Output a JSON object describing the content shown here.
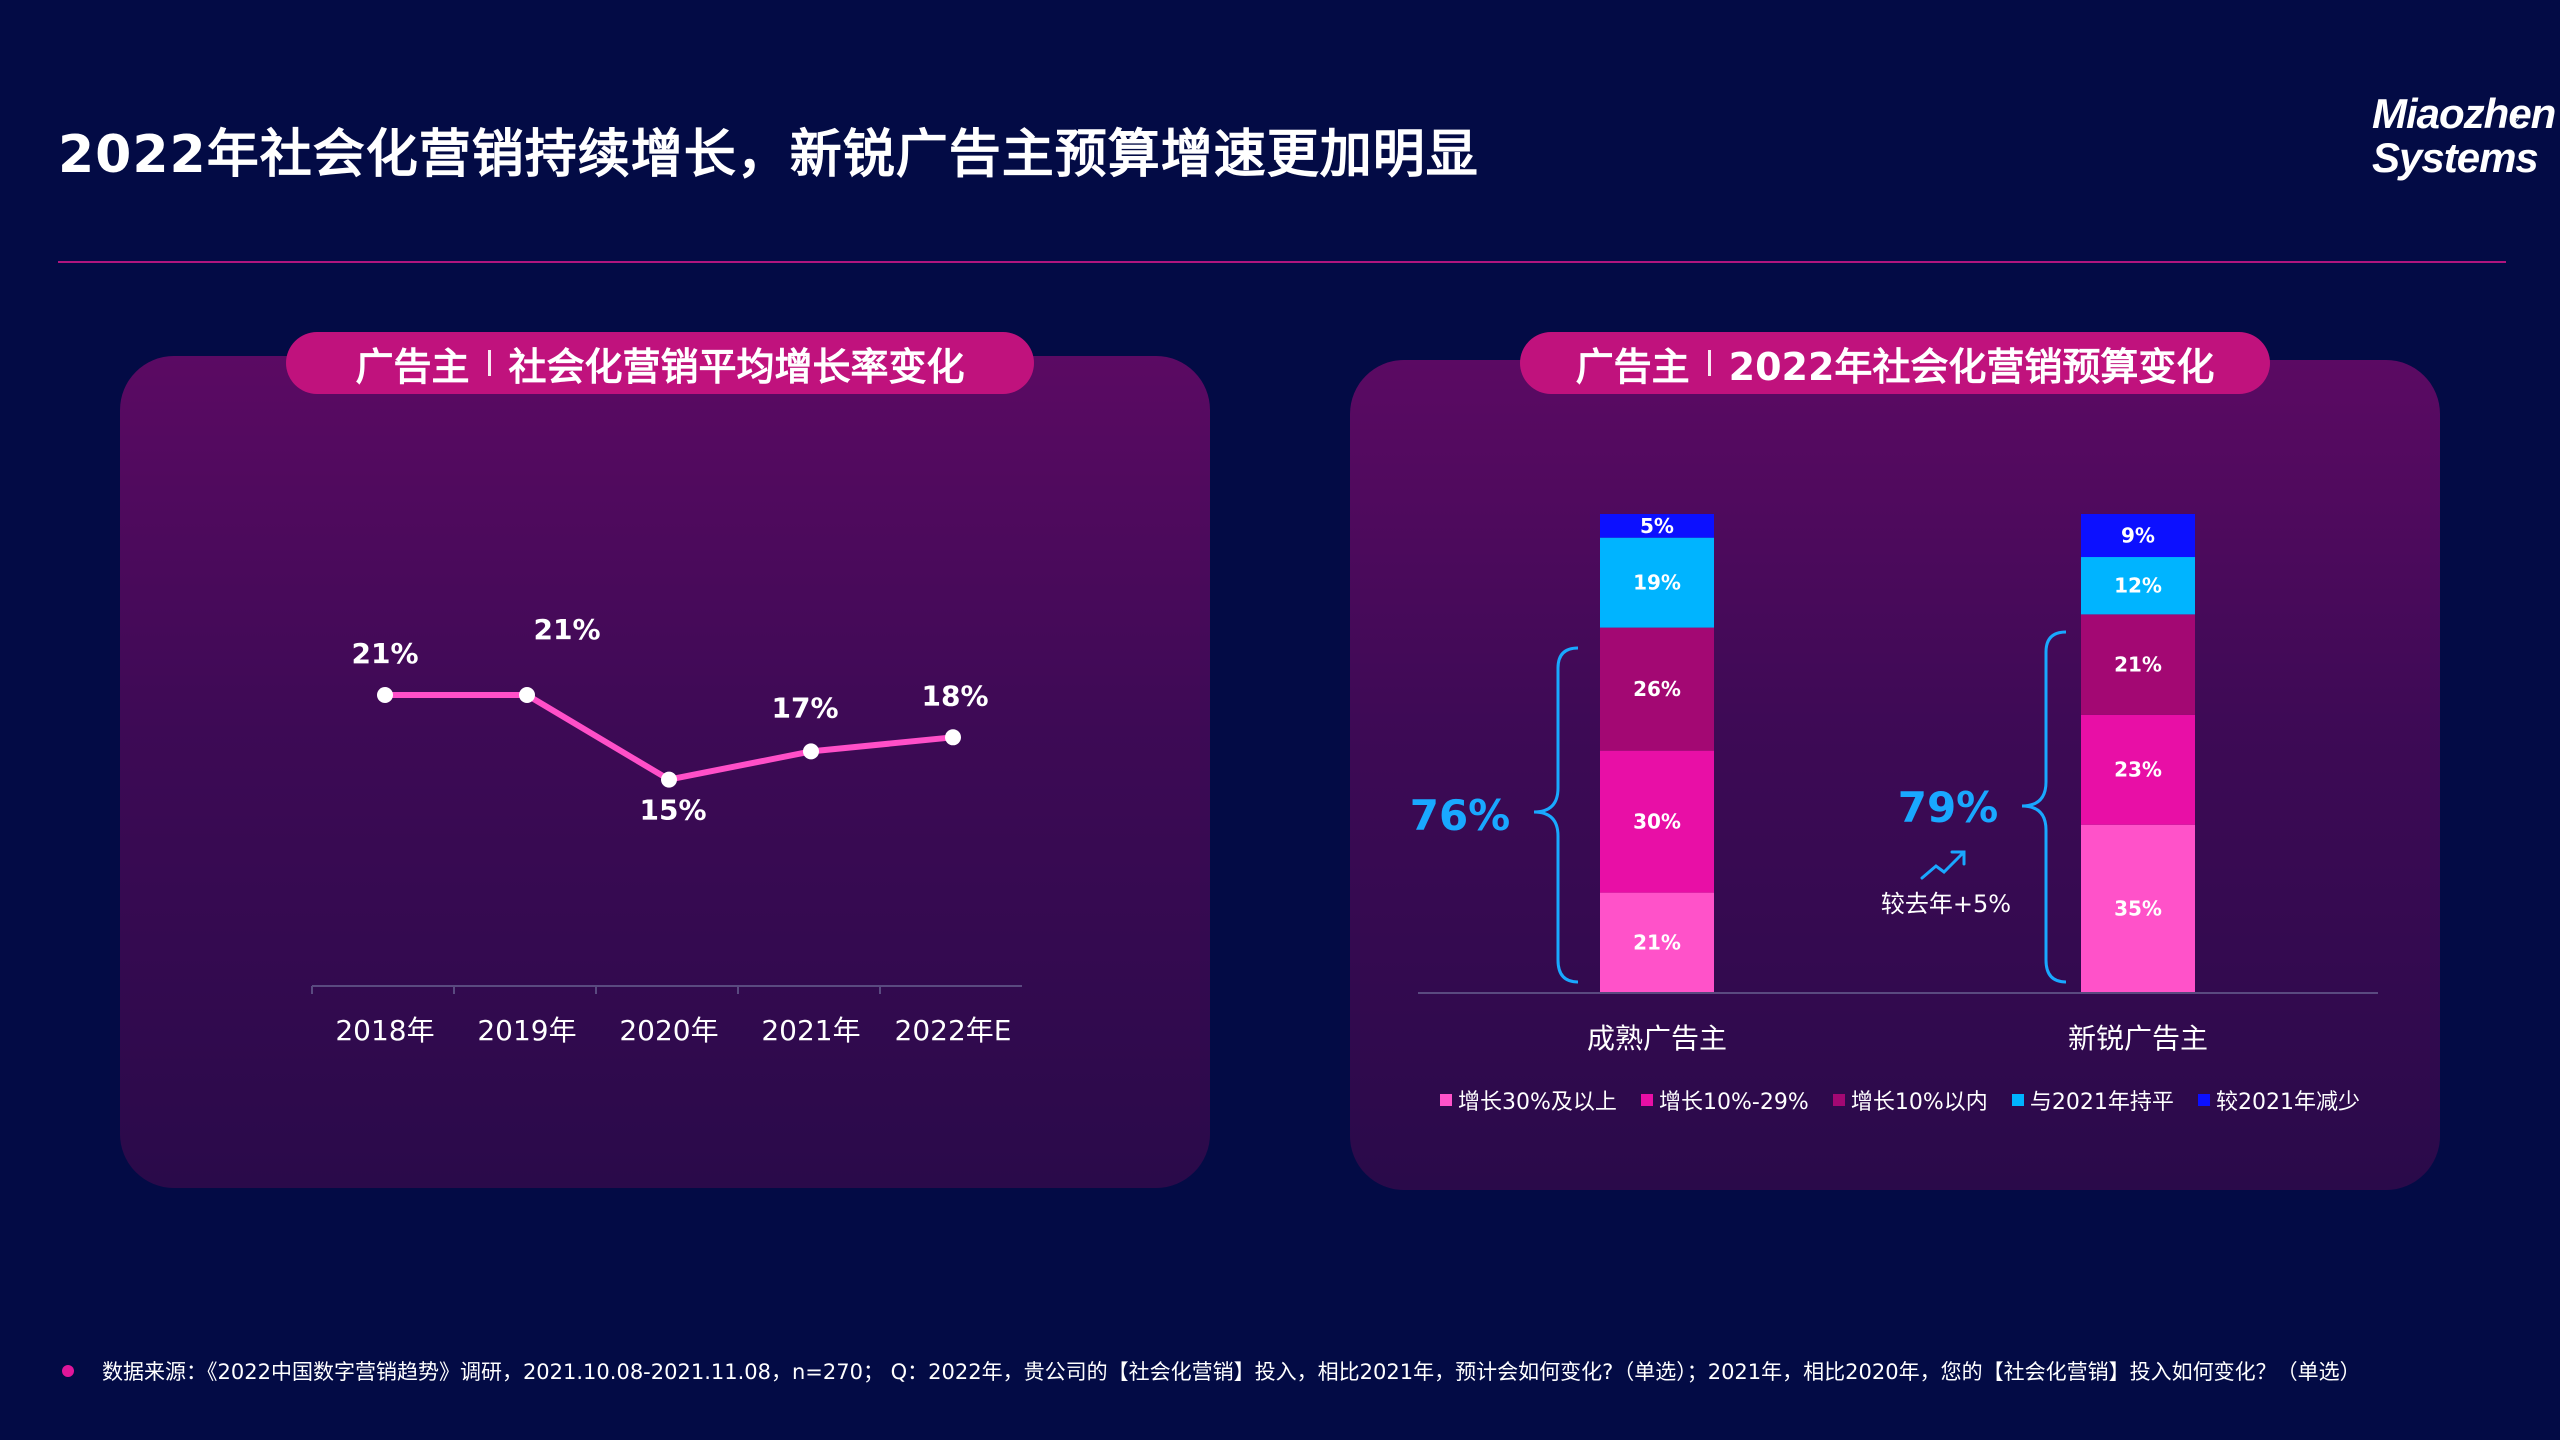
{
  "title": "2022年社会化营销持续增长，新锐广告主预算增速更加明显",
  "logo": {
    "line1": "Miaozhen",
    "line2": "Systems",
    "reg": "®"
  },
  "left_panel": {
    "pill_prefix": "广告主",
    "pill_title": "社会化营销平均增长率变化"
  },
  "right_panel": {
    "pill_prefix": "广告主",
    "pill_title": "2022年社会化营销预算变化",
    "brace_values": [
      "76%",
      "79%"
    ],
    "yoy_note": "较去年+5%"
  },
  "colors": {
    "line": "#ff4fc8",
    "growth_30_plus": "#ff52c9",
    "growth_10_29": "#e80fa6",
    "growth_under_10": "#a30873",
    "flat": "#00b4ff",
    "decrease": "#0c10ff",
    "brace_text": "#19a8ff"
  },
  "chart_data": [
    {
      "type": "line",
      "categories": [
        "2018年",
        "2019年",
        "2020年",
        "2021年",
        "2022年E"
      ],
      "series": [
        {
          "values": [
            21,
            21,
            15,
            17,
            18
          ]
        }
      ],
      "labels": [
        "21%",
        "21%",
        "15%",
        "17%",
        "18%"
      ],
      "unit": "%"
    },
    {
      "type": "bar",
      "stacked": true,
      "categories": [
        "成熟广告主",
        "新锐广告主"
      ],
      "series": [
        {
          "name": "增长30%及以上",
          "values": [
            21,
            35
          ],
          "color": "#ff52c9"
        },
        {
          "name": "增长10%-29%",
          "values": [
            30,
            23
          ],
          "color": "#e80fa6"
        },
        {
          "name": "增长10%以内",
          "values": [
            26,
            21
          ],
          "color": "#a30873"
        },
        {
          "name": "与2021年持平",
          "values": [
            19,
            12
          ],
          "color": "#00b4ff"
        },
        {
          "name": "较2021年减少",
          "values": [
            5,
            9
          ],
          "color": "#0c10ff"
        }
      ],
      "legend_position": "bottom"
    }
  ],
  "footer": "数据来源：《2022中国数字营销趋势》调研，2021.10.08-2021.11.08，n=270； Q：2022年，贵公司的【社会化营销】投入，相比2021年，预计会如何变化?（单选）；2021年，相比2020年，您的【社会化营销】投入如何变化？（单选）"
}
